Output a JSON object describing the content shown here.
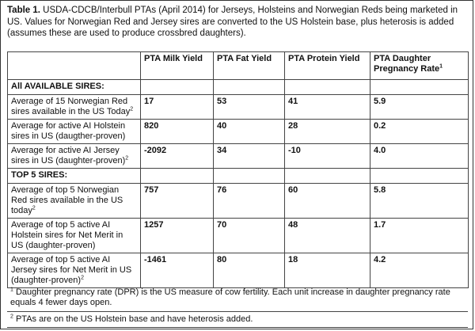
{
  "caption": {
    "label": "Table 1.",
    "text": "USDA-CDCB/Interbull PTAs (April 2014) for Jerseys, Holsteins and Norwegian Reds being marketed in US. Values for Norwegian Red and Jersey sires are converted to the US Holstein base, plus heterosis is added (assumes these are used to produce crossbred daughters)."
  },
  "table": {
    "headers": [
      "",
      "PTA Milk Yield",
      "PTA Fat Yield",
      "PTA Protein Yield",
      "PTA Daughter Pregnancy Rate"
    ],
    "header_sup": "1",
    "sections": [
      {
        "title": "All AVAILABLE SIRES:",
        "rows": [
          {
            "label": "Average of 15 Norwegian Red sires available in the US Today",
            "sup": "2",
            "values": [
              "17",
              "53",
              "41",
              "5.9"
            ]
          },
          {
            "label": "Average for active AI Holstein sires in US (daugther-proven)",
            "sup": "",
            "values": [
              "820",
              "40",
              "28",
              "0.2"
            ]
          },
          {
            "label": "Average for active AI Jersey sires in US (daughter-proven)",
            "sup": "2",
            "values": [
              "-2092",
              "34",
              "-10",
              "4.0"
            ]
          }
        ]
      },
      {
        "title": "TOP 5 SIRES:",
        "rows": [
          {
            "label": "Average of top 5 Norwegian Red sires available in the US today",
            "sup": "2",
            "values": [
              "757",
              "76",
              "60",
              "5.8"
            ]
          },
          {
            "label": "Average of top 5 active AI Holstein sires for Net Merit in US (daughter-proven)",
            "sup": "",
            "values": [
              "1257",
              "70",
              "48",
              "1.7"
            ]
          },
          {
            "label": "Average of top 5 active AI Jersey sires for Net Merit in US (daughter-proven)",
            "sup": "2",
            "values": [
              "-1461",
              "80",
              "18",
              "4.2"
            ]
          }
        ]
      }
    ]
  },
  "footnotes": [
    {
      "mark": "1",
      "text": "Daughter pregnancy rate (DPR) is the US measure of cow fertility.  Each unit increase in daughter pregnancy rate equals 4 fewer days open."
    },
    {
      "mark": "2",
      "text": "PTAs are on the US Holstein base and have heterosis added."
    }
  ]
}
